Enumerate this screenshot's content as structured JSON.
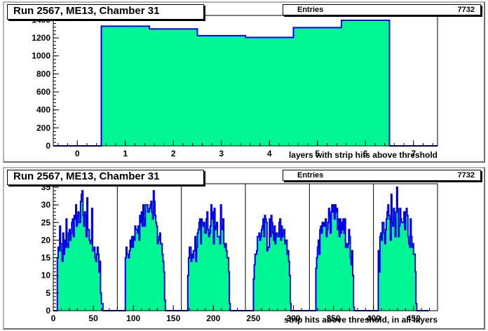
{
  "colors": {
    "fill": "#00f593",
    "line": "#0000e6",
    "axis": "#000000"
  },
  "chart_data": [
    {
      "type": "bar",
      "title": "Run 2567, ME13, Chamber 31",
      "stats": {
        "label": "Entries",
        "value": "7732"
      },
      "xlabel": "layers with strip hits above threshold",
      "ylabel": "",
      "xlim": [
        -0.5,
        7.5
      ],
      "ylim": [
        0,
        1450
      ],
      "x_ticks": [
        0,
        1,
        2,
        3,
        4,
        5,
        6,
        7
      ],
      "y_ticks": [
        0,
        200,
        400,
        600,
        800,
        1000,
        1200,
        1400
      ],
      "bin_edges": [
        -0.5,
        0.5,
        1.5,
        2.5,
        3.5,
        4.5,
        5.5,
        6.5,
        7.5
      ],
      "values": [
        0,
        1330,
        1300,
        1225,
        1205,
        1315,
        1395,
        0
      ],
      "grid": false
    },
    {
      "type": "bar",
      "title": "Run 2567, ME13, Chamber 31",
      "stats": {
        "label": "Entries",
        "value": "7732"
      },
      "xlabel": "strip hits above threshold, in all layers",
      "ylabel": "",
      "xlim": [
        0,
        480
      ],
      "ylim": [
        0,
        36
      ],
      "x_ticks": [
        0,
        50,
        100,
        150,
        200,
        250,
        300,
        350,
        400,
        450
      ],
      "y_ticks": [
        0,
        5,
        10,
        15,
        20,
        25,
        30,
        35
      ],
      "layer_boundaries": [
        80,
        160,
        240,
        320,
        400
      ],
      "bin_width": 1,
      "values": [
        0,
        0,
        0,
        0,
        0,
        15,
        18,
        17,
        24,
        19,
        17,
        14,
        22,
        16,
        20,
        18,
        26,
        19,
        18,
        22,
        23,
        20,
        22,
        25,
        26,
        21,
        27,
        26,
        30,
        24,
        27,
        28,
        25,
        25,
        31,
        33,
        34,
        27,
        24,
        28,
        27,
        21,
        32,
        23,
        23,
        20,
        19,
        20,
        29,
        17,
        17,
        18,
        15,
        14,
        16,
        18,
        16,
        11,
        14,
        5,
        2,
        2,
        0,
        0,
        0,
        0,
        0,
        0,
        0,
        0,
        0,
        0,
        0,
        0,
        0,
        0,
        0,
        0,
        0,
        0,
        0,
        0,
        0,
        0,
        0,
        0,
        0,
        0,
        0,
        0,
        15,
        18,
        16,
        16,
        15,
        17,
        20,
        18,
        21,
        18,
        21,
        20,
        24,
        23,
        23,
        22,
        24,
        20,
        27,
        25,
        28,
        24,
        30,
        26,
        24,
        30,
        30,
        30,
        28,
        28,
        29,
        30,
        31,
        28,
        26,
        34,
        31,
        27,
        25,
        24,
        19,
        20,
        21,
        22,
        19,
        19,
        16,
        14,
        11,
        3,
        0,
        0,
        0,
        0,
        0,
        0,
        0,
        0,
        0,
        0,
        0,
        0,
        0,
        0,
        0,
        0,
        0,
        0,
        0,
        0,
        0,
        0,
        0,
        0,
        0,
        0,
        0,
        0,
        10,
        15,
        18,
        18,
        14,
        16,
        15,
        17,
        17,
        21,
        14,
        18,
        22,
        23,
        25,
        26,
        19,
        26,
        25,
        24,
        25,
        22,
        22,
        26,
        28,
        23,
        21,
        22,
        24,
        30,
        26,
        28,
        19,
        29,
        23,
        24,
        25,
        21,
        21,
        21,
        19,
        30,
        24,
        23,
        26,
        19,
        18,
        19,
        17,
        15,
        15,
        11,
        2,
        0,
        0,
        0,
        0,
        0,
        0,
        0,
        0,
        0,
        0,
        0,
        0,
        0,
        0,
        0,
        0,
        0,
        0,
        0,
        0,
        0,
        0,
        0,
        0,
        0,
        0,
        0,
        0,
        0,
        9,
        13,
        16,
        16,
        17,
        21,
        21,
        22,
        20,
        21,
        23,
        24,
        26,
        21,
        27,
        26,
        25,
        17,
        18,
        18,
        26,
        21,
        27,
        25,
        22,
        20,
        24,
        19,
        22,
        22,
        21,
        21,
        25,
        26,
        20,
        24,
        21,
        22,
        23,
        19,
        20,
        20,
        16,
        17,
        14,
        10,
        2,
        0,
        0,
        0,
        0,
        0,
        0,
        0,
        0,
        0,
        0,
        0,
        0,
        0,
        0,
        0,
        0,
        0,
        0,
        0,
        0,
        0,
        0,
        0,
        0,
        0,
        0,
        0,
        0,
        0,
        0,
        0,
        12,
        15,
        18,
        20,
        16,
        23,
        24,
        22,
        25,
        24,
        25,
        24,
        26,
        21,
        23,
        25,
        29,
        27,
        22,
        28,
        30,
        28,
        30,
        26,
        30,
        28,
        29,
        23,
        26,
        21,
        26,
        22,
        25,
        23,
        26,
        22,
        26,
        18,
        19,
        18,
        19,
        23,
        21,
        15,
        13,
        17,
        10,
        1,
        0,
        0,
        0,
        0,
        0,
        0,
        0,
        0,
        0,
        0,
        0,
        0,
        0,
        0,
        0,
        0,
        0,
        0,
        0,
        0,
        0,
        0,
        0,
        0,
        0,
        0,
        0,
        0,
        0,
        0,
        17,
        11,
        21,
        22,
        20,
        25,
        25,
        22,
        19,
        23,
        26,
        28,
        30,
        27,
        26,
        20,
        33,
        25,
        24,
        29,
        26,
        21,
        28,
        35,
        29,
        21,
        24,
        29,
        26,
        25,
        25,
        25,
        28,
        23,
        28,
        29,
        27,
        21,
        19,
        18,
        26,
        21,
        18,
        19,
        16,
        16,
        11,
        2,
        0,
        0,
        0,
        0,
        0,
        0,
        0,
        0,
        0,
        0,
        0,
        0,
        0,
        0,
        0
      ],
      "grid": false
    }
  ]
}
